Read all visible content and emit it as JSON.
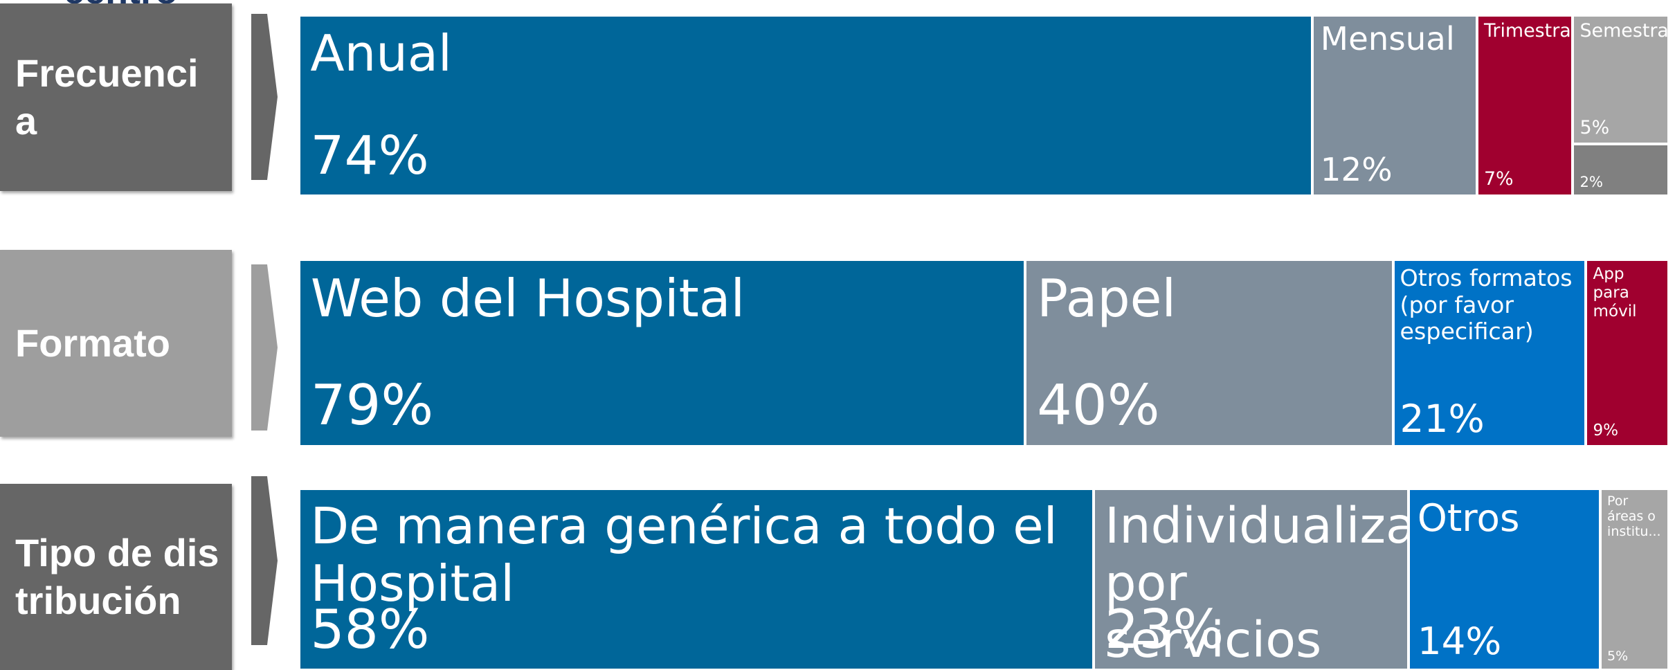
{
  "fragment": "centro",
  "chart_data": [
    {
      "type": "treemap",
      "title": "Frecuencia",
      "categories": [
        "Anual",
        "Mensual",
        "Trimestral",
        "Semestral",
        null
      ],
      "values": [
        74,
        12,
        7,
        5,
        2
      ],
      "value_labels": [
        "74%",
        "12%",
        "7%",
        "5%",
        "2%"
      ],
      "colors": [
        "#006699",
        "#7f8e9c",
        "#a0002f",
        "#a6a6a6",
        "#808080"
      ],
      "side_color": "#666666"
    },
    {
      "type": "treemap",
      "title": "Formato",
      "categories": [
        "Web del Hospital",
        "Papel",
        "Otros formatos (por favor especificar)",
        "App para móvil"
      ],
      "values": [
        79,
        40,
        21,
        9
      ],
      "value_labels": [
        "79%",
        "40%",
        "21%",
        "9%"
      ],
      "colors": [
        "#006699",
        "#7f8e9c",
        "#0072c6",
        "#a0002f"
      ],
      "side_color": "#9e9e9e"
    },
    {
      "type": "treemap",
      "title": "Tipo de distribución",
      "categories": [
        "De manera genérica a todo el Hospital",
        "Individualizada por servicios",
        "Otros",
        "Por áreas o institu..."
      ],
      "values": [
        58,
        23,
        14,
        5
      ],
      "value_labels": [
        "58%",
        "23%",
        "14%",
        "5%"
      ],
      "colors": [
        "#006699",
        "#7f8e9c",
        "#0072c6",
        "#a6a6a6"
      ],
      "side_color": "#666666"
    }
  ]
}
